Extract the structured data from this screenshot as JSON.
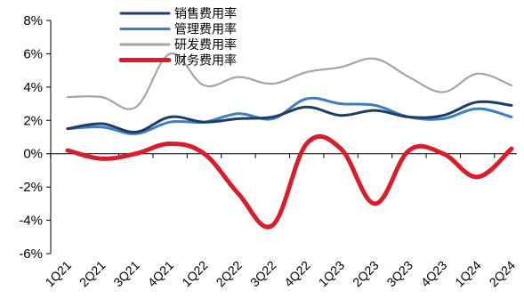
{
  "chart_data": {
    "type": "line",
    "title": "",
    "xlabel": "",
    "ylabel": "",
    "categories": [
      "1Q21",
      "2Q21",
      "3Q21",
      "4Q21",
      "1Q22",
      "2Q22",
      "3Q22",
      "4Q22",
      "1Q23",
      "2Q23",
      "3Q23",
      "4Q23",
      "1Q24",
      "2Q24"
    ],
    "y_ticks": [
      "8%",
      "6%",
      "4%",
      "2%",
      "0%",
      "-2%",
      "-4%",
      "-6%"
    ],
    "y_tick_values": [
      8,
      6,
      4,
      2,
      0,
      -2,
      -4,
      -6
    ],
    "ylim": [
      -6,
      8
    ],
    "grid": false,
    "legend_position": "top-left",
    "series": [
      {
        "name": "销售费用率",
        "color": "#1f3d64",
        "width": 3,
        "values": [
          1.5,
          1.8,
          1.3,
          2.2,
          1.9,
          2.1,
          2.2,
          2.8,
          2.3,
          2.6,
          2.2,
          2.3,
          3.1,
          2.9
        ]
      },
      {
        "name": "管理费用率",
        "color": "#3b7fc4",
        "width": 3,
        "values": [
          1.5,
          1.6,
          1.2,
          1.9,
          1.9,
          2.4,
          2.1,
          3.3,
          3.0,
          2.9,
          2.2,
          2.1,
          2.7,
          2.2
        ]
      },
      {
        "name": "研发费用率",
        "color": "#a6a6a6",
        "width": 2.2,
        "values": [
          3.4,
          3.4,
          2.8,
          6.0,
          4.1,
          4.6,
          4.2,
          4.9,
          5.2,
          5.7,
          4.6,
          3.7,
          4.8,
          4.1
        ]
      },
      {
        "name": "财务费用率",
        "color": "#d81e2a",
        "width": 5,
        "values": [
          0.2,
          -0.3,
          0.0,
          0.6,
          0.0,
          -2.4,
          -4.3,
          0.6,
          0.3,
          -3.0,
          0.2,
          0.0,
          -1.4,
          0.3
        ]
      }
    ]
  }
}
